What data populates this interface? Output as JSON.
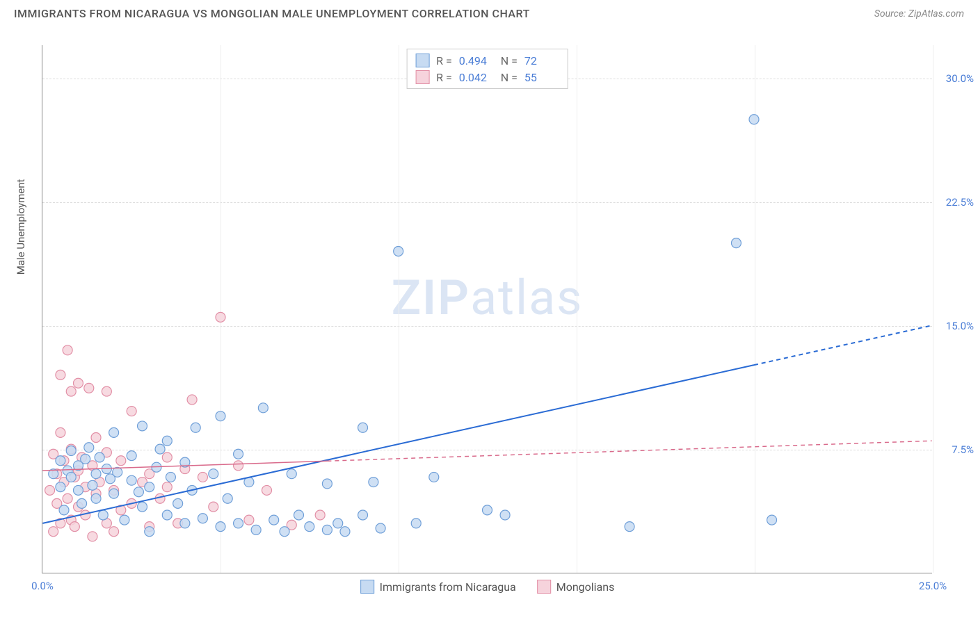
{
  "header": {
    "title": "IMMIGRANTS FROM NICARAGUA VS MONGOLIAN MALE UNEMPLOYMENT CORRELATION CHART",
    "source": "Source: ZipAtlas.com"
  },
  "watermark": {
    "zip": "ZIP",
    "atlas": "atlas"
  },
  "y_axis": {
    "label": "Male Unemployment"
  },
  "chart": {
    "type": "scatter",
    "xlim": [
      0,
      25
    ],
    "ylim": [
      0,
      32
    ],
    "x_ticks": [
      0,
      25
    ],
    "x_tick_labels": [
      "0.0%",
      "25.0%"
    ],
    "y_ticks": [
      7.5,
      15.0,
      22.5,
      30.0
    ],
    "y_tick_labels": [
      "7.5%",
      "15.0%",
      "22.5%",
      "30.0%"
    ],
    "v_grid": [
      5,
      10,
      15,
      20,
      25
    ],
    "marker_radius": 7,
    "series": [
      {
        "name": "Immigrants from Nicaragua",
        "fill": "#c7dbf2",
        "stroke": "#6f9fd8",
        "R": "0.494",
        "N": "72",
        "trend": {
          "x1": 0,
          "y1": 3.0,
          "x2": 25,
          "y2": 15.0,
          "solid_until_x": 20,
          "color": "#2a6bd4",
          "width": 2
        },
        "points": [
          [
            0.3,
            6.0
          ],
          [
            0.5,
            5.2
          ],
          [
            0.5,
            6.8
          ],
          [
            0.6,
            3.8
          ],
          [
            0.7,
            6.2
          ],
          [
            0.8,
            5.8
          ],
          [
            0.8,
            7.4
          ],
          [
            1.0,
            6.5
          ],
          [
            1.0,
            5.0
          ],
          [
            1.1,
            4.2
          ],
          [
            1.2,
            6.9
          ],
          [
            1.3,
            7.6
          ],
          [
            1.4,
            5.3
          ],
          [
            1.5,
            6.0
          ],
          [
            1.5,
            4.5
          ],
          [
            1.6,
            7.0
          ],
          [
            1.7,
            3.5
          ],
          [
            1.8,
            6.3
          ],
          [
            1.9,
            5.7
          ],
          [
            2.0,
            4.8
          ],
          [
            2.0,
            8.5
          ],
          [
            2.1,
            6.1
          ],
          [
            2.3,
            3.2
          ],
          [
            2.5,
            5.6
          ],
          [
            2.5,
            7.1
          ],
          [
            2.8,
            4.0
          ],
          [
            2.8,
            8.9
          ],
          [
            3.0,
            5.2
          ],
          [
            3.0,
            2.5
          ],
          [
            3.2,
            6.4
          ],
          [
            3.5,
            8.0
          ],
          [
            3.5,
            3.5
          ],
          [
            3.6,
            5.8
          ],
          [
            3.8,
            4.2
          ],
          [
            4.0,
            3.0
          ],
          [
            4.0,
            6.7
          ],
          [
            4.2,
            5.0
          ],
          [
            4.3,
            8.8
          ],
          [
            4.5,
            3.3
          ],
          [
            4.8,
            6.0
          ],
          [
            5.0,
            2.8
          ],
          [
            5.0,
            9.5
          ],
          [
            5.2,
            4.5
          ],
          [
            5.5,
            3.0
          ],
          [
            5.5,
            7.2
          ],
          [
            5.8,
            5.5
          ],
          [
            6.0,
            2.6
          ],
          [
            6.2,
            10.0
          ],
          [
            6.5,
            3.2
          ],
          [
            6.8,
            2.5
          ],
          [
            7.0,
            6.0
          ],
          [
            7.2,
            3.5
          ],
          [
            7.5,
            2.8
          ],
          [
            8.0,
            2.6
          ],
          [
            8.0,
            5.4
          ],
          [
            8.3,
            3.0
          ],
          [
            8.5,
            2.5
          ],
          [
            9.0,
            3.5
          ],
          [
            9.0,
            8.8
          ],
          [
            9.3,
            5.5
          ],
          [
            9.5,
            2.7
          ],
          [
            10.0,
            19.5
          ],
          [
            10.5,
            3.0
          ],
          [
            11.0,
            5.8
          ],
          [
            12.5,
            3.8
          ],
          [
            13.0,
            3.5
          ],
          [
            16.5,
            2.8
          ],
          [
            19.5,
            20.0
          ],
          [
            20.0,
            27.5
          ],
          [
            20.5,
            3.2
          ],
          [
            2.7,
            4.9
          ],
          [
            3.3,
            7.5
          ]
        ]
      },
      {
        "name": "Mongolians",
        "fill": "#f6d3dc",
        "stroke": "#e28fa6",
        "R": "0.042",
        "N": "55",
        "trend": {
          "x1": 0,
          "y1": 6.2,
          "x2": 25,
          "y2": 8.0,
          "solid_until_x": 8,
          "color": "#d96a8b",
          "width": 1.5
        },
        "points": [
          [
            0.2,
            5.0
          ],
          [
            0.3,
            2.5
          ],
          [
            0.3,
            7.2
          ],
          [
            0.4,
            6.0
          ],
          [
            0.4,
            4.2
          ],
          [
            0.5,
            3.0
          ],
          [
            0.5,
            8.5
          ],
          [
            0.5,
            12.0
          ],
          [
            0.6,
            5.5
          ],
          [
            0.6,
            6.8
          ],
          [
            0.7,
            4.5
          ],
          [
            0.7,
            13.5
          ],
          [
            0.8,
            3.2
          ],
          [
            0.8,
            7.5
          ],
          [
            0.8,
            11.0
          ],
          [
            0.9,
            5.8
          ],
          [
            0.9,
            2.8
          ],
          [
            1.0,
            6.2
          ],
          [
            1.0,
            4.0
          ],
          [
            1.0,
            11.5
          ],
          [
            1.1,
            7.0
          ],
          [
            1.2,
            3.5
          ],
          [
            1.2,
            5.2
          ],
          [
            1.3,
            11.2
          ],
          [
            1.4,
            6.5
          ],
          [
            1.4,
            2.2
          ],
          [
            1.5,
            4.8
          ],
          [
            1.5,
            8.2
          ],
          [
            1.6,
            5.5
          ],
          [
            1.8,
            3.0
          ],
          [
            1.8,
            7.3
          ],
          [
            1.8,
            11.0
          ],
          [
            2.0,
            5.0
          ],
          [
            2.0,
            2.5
          ],
          [
            2.2,
            6.8
          ],
          [
            2.2,
            3.8
          ],
          [
            2.5,
            4.2
          ],
          [
            2.5,
            9.8
          ],
          [
            2.8,
            5.5
          ],
          [
            3.0,
            6.0
          ],
          [
            3.0,
            2.8
          ],
          [
            3.3,
            4.5
          ],
          [
            3.5,
            7.0
          ],
          [
            3.5,
            5.2
          ],
          [
            3.8,
            3.0
          ],
          [
            4.0,
            6.3
          ],
          [
            4.2,
            10.5
          ],
          [
            4.5,
            5.8
          ],
          [
            4.8,
            4.0
          ],
          [
            5.5,
            6.5
          ],
          [
            5.8,
            3.2
          ],
          [
            5.0,
            15.5
          ],
          [
            7.0,
            2.9
          ],
          [
            7.8,
            3.5
          ],
          [
            6.3,
            5.0
          ]
        ]
      }
    ]
  },
  "legend_bottom": [
    {
      "label": "Immigrants from Nicaragua",
      "fill": "#c7dbf2",
      "stroke": "#6f9fd8"
    },
    {
      "label": "Mongolians",
      "fill": "#f6d3dc",
      "stroke": "#e28fa6"
    }
  ]
}
